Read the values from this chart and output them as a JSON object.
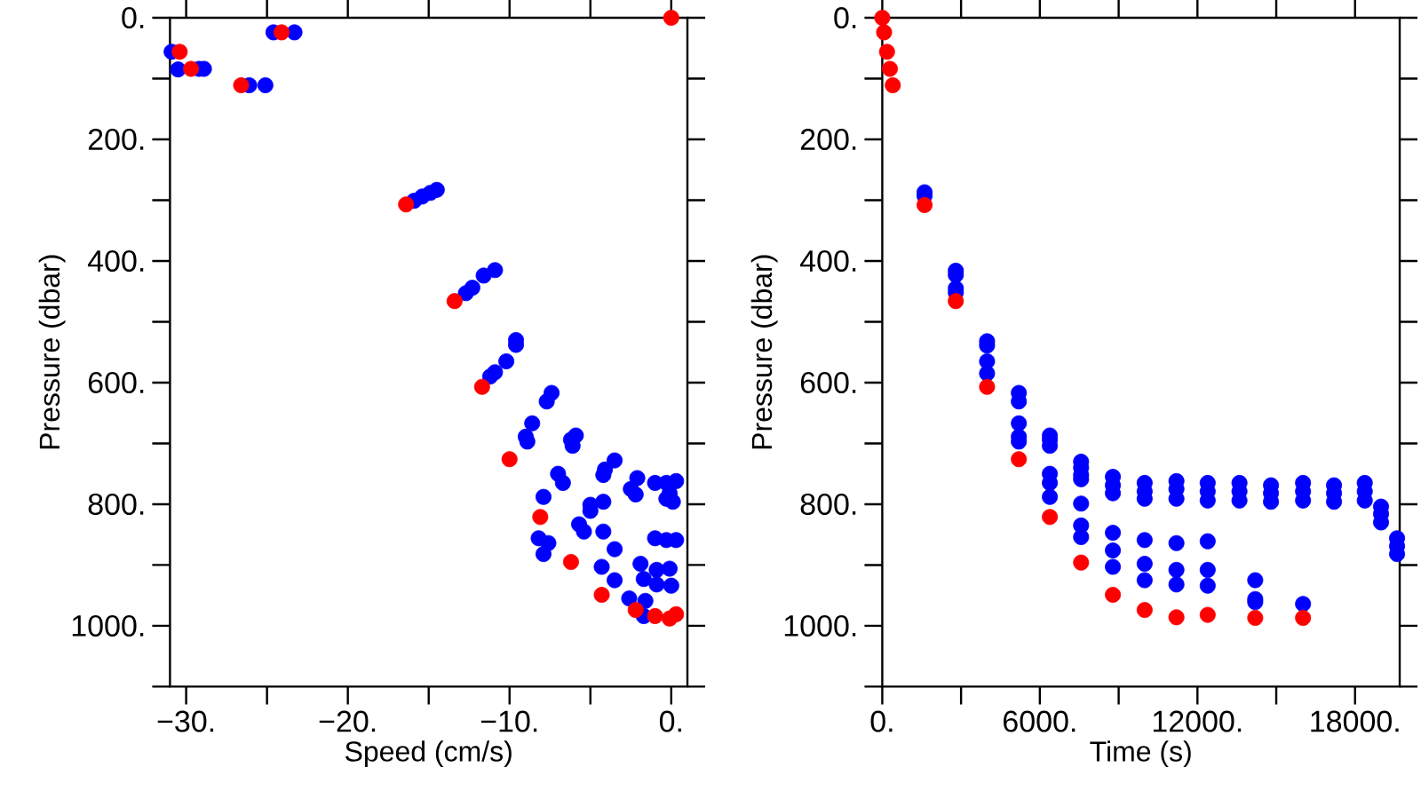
{
  "chart_data": [
    {
      "type": "scatter",
      "xlabel": "Speed (cm/s)",
      "ylabel": "Pressure (dbar)",
      "marker": "circle",
      "grid": false,
      "xlim": [
        -31,
        1
      ],
      "ylim": [
        1100,
        0
      ],
      "xticks": [
        {
          "value": -30,
          "label": "−30."
        },
        {
          "value": -25,
          "label": null
        },
        {
          "value": -20,
          "label": "−20."
        },
        {
          "value": -15,
          "label": null
        },
        {
          "value": -10,
          "label": "−10."
        },
        {
          "value": -5,
          "label": null
        },
        {
          "value": 0,
          "label": "0."
        }
      ],
      "yticks": [
        {
          "value": 0,
          "label": "0."
        },
        {
          "value": 100,
          "label": null
        },
        {
          "value": 200,
          "label": "200."
        },
        {
          "value": 300,
          "label": null
        },
        {
          "value": 400,
          "label": "400."
        },
        {
          "value": 500,
          "label": null
        },
        {
          "value": 600,
          "label": "600."
        },
        {
          "value": 700,
          "label": null
        },
        {
          "value": 800,
          "label": "800."
        },
        {
          "value": 900,
          "label": null
        },
        {
          "value": 1000,
          "label": "1000."
        },
        {
          "value": 1100,
          "label": null
        }
      ],
      "series": [
        {
          "color": "#0000ff",
          "x": [
            -30.9,
            -30.5,
            -29.2,
            -28.9,
            -26.1,
            -25.1,
            -24.6,
            -23.3,
            -15.9,
            -15.4,
            -14.9,
            -14.5,
            -12.7,
            -12.3,
            -11.6,
            -10.9,
            -9.6,
            -9.6,
            -10.2,
            -11.2,
            -10.9,
            -7.4,
            -7.7,
            -8.6,
            -9.0,
            -8.9,
            -6.2,
            -5.9,
            -6.1,
            -7.0,
            -6.7,
            -7.9,
            -8.2,
            -7.6,
            -7.9,
            -3.5,
            -4.1,
            -4.2,
            -5.0,
            -5.0,
            -5.7,
            -5.4,
            -4.2,
            -4.2,
            -3.5,
            -4.3,
            -3.5,
            -2.1,
            -2.5,
            -2.2,
            -1.9,
            -1.7,
            -2.6,
            -1.6,
            -1.7,
            -1.0,
            -0.3,
            0.3,
            -0.1,
            -0.3,
            0.1,
            -1.0,
            -0.3,
            0.3,
            -0.9,
            -0.1,
            -0.9,
            0.0
          ],
          "values": [
            56,
            85,
            84,
            84,
            111,
            111,
            24,
            24,
            301,
            294,
            288,
            283,
            453,
            444,
            424,
            415,
            530,
            538,
            565,
            590,
            583,
            617,
            631,
            667,
            689,
            697,
            694,
            687,
            704,
            750,
            765,
            788,
            856,
            864,
            882,
            728,
            743,
            752,
            801,
            811,
            833,
            845,
            796,
            845,
            874,
            903,
            925,
            757,
            775,
            784,
            898,
            923,
            955,
            959,
            984,
            765,
            765,
            762,
            782,
            791,
            796,
            856,
            859,
            859,
            908,
            906,
            932,
            934
          ]
        },
        {
          "color": "#ff0000",
          "x": [
            0.0,
            -30.4,
            -29.7,
            -26.6,
            -24.1,
            -16.4,
            -13.4,
            -11.7,
            -10.0,
            -8.1,
            -6.2,
            -4.3,
            -2.2,
            -1.0,
            -0.1,
            0.3
          ],
          "values": [
            0,
            56,
            84,
            111,
            24,
            307,
            466,
            607,
            726,
            821,
            895,
            949,
            974,
            984,
            988,
            981
          ]
        }
      ]
    },
    {
      "type": "scatter",
      "xlabel": "Time (s)",
      "ylabel": "Pressure (dbar)",
      "marker": "circle",
      "grid": false,
      "xlim": [
        0,
        19700
      ],
      "ylim": [
        1100,
        0
      ],
      "xticks": [
        {
          "value": 0,
          "label": "0."
        },
        {
          "value": 3000,
          "label": null
        },
        {
          "value": 6000,
          "label": "6000."
        },
        {
          "value": 9000,
          "label": null
        },
        {
          "value": 12000,
          "label": "12000."
        },
        {
          "value": 15000,
          "label": null
        },
        {
          "value": 18000,
          "label": "18000."
        }
      ],
      "yticks": [
        {
          "value": 0,
          "label": "0."
        },
        {
          "value": 100,
          "label": null
        },
        {
          "value": 200,
          "label": "200."
        },
        {
          "value": 300,
          "label": null
        },
        {
          "value": 400,
          "label": "400."
        },
        {
          "value": 500,
          "label": null
        },
        {
          "value": 600,
          "label": "600."
        },
        {
          "value": 700,
          "label": null
        },
        {
          "value": 800,
          "label": "800."
        },
        {
          "value": 900,
          "label": null
        },
        {
          "value": 1000,
          "label": "1000."
        },
        {
          "value": 1100,
          "label": null
        }
      ],
      "series": [
        {
          "color": "#0000ff",
          "x": [
            1610,
            1610,
            2800,
            2800,
            2800,
            2800,
            3990,
            3990,
            3990,
            3990,
            5200,
            5200,
            5200,
            5200,
            5200,
            6380,
            6380,
            6380,
            6380,
            6380,
            6380,
            7570,
            7570,
            7570,
            7570,
            7570,
            7570,
            7570,
            8780,
            8780,
            8780,
            8780,
            8780,
            8780,
            9990,
            9990,
            9990,
            9990,
            9990,
            9990,
            11200,
            11200,
            11200,
            11200,
            11200,
            11200,
            12390,
            12390,
            12390,
            12390,
            12390,
            12390,
            13600,
            13600,
            13600,
            14200,
            14200,
            14200,
            14800,
            14800,
            14800,
            16020,
            16020,
            16020,
            16020,
            17200,
            17200,
            17200,
            18370,
            18370,
            18370,
            18990,
            18990,
            18990,
            19600,
            19600,
            19600
          ],
          "values": [
            287,
            293,
            416,
            423,
            445,
            452,
            532,
            539,
            565,
            585,
            617,
            631,
            667,
            689,
            697,
            687,
            694,
            704,
            750,
            765,
            788,
            730,
            740,
            752,
            759,
            799,
            835,
            854,
            755,
            769,
            782,
            847,
            876,
            903,
            765,
            779,
            791,
            859,
            898,
            925,
            762,
            775,
            791,
            864,
            908,
            932,
            765,
            779,
            794,
            861,
            908,
            934,
            765,
            779,
            794,
            925,
            956,
            961,
            769,
            782,
            796,
            765,
            779,
            794,
            964,
            769,
            782,
            796,
            765,
            779,
            794,
            804,
            816,
            830,
            856,
            869,
            882
          ]
        },
        {
          "color": "#ff0000",
          "x": [
            0,
            70,
            180,
            290,
            400,
            1610,
            2800,
            3990,
            5200,
            6380,
            7570,
            8780,
            9990,
            11200,
            12390,
            14200,
            16020
          ],
          "values": [
            0,
            24,
            56,
            84,
            111,
            308,
            466,
            607,
            726,
            821,
            896,
            949,
            974,
            986,
            982,
            987,
            987
          ]
        }
      ]
    }
  ]
}
